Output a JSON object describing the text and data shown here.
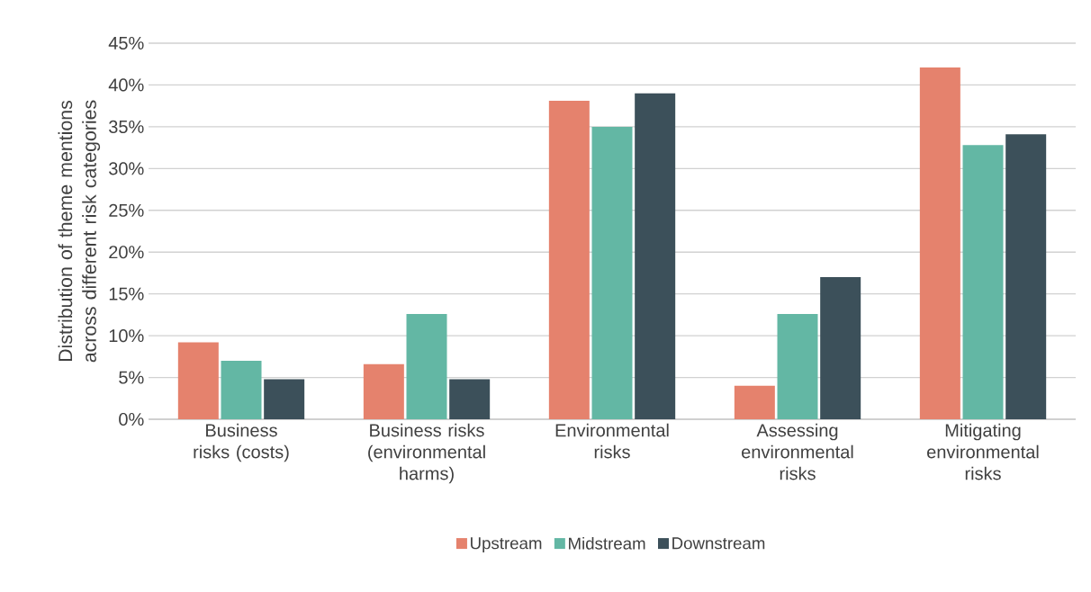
{
  "chart_data": {
    "type": "bar",
    "ylabel": "Distribution of theme mentions across different risk categories",
    "categories": [
      "Business risks (costs)",
      "Business risks (environmental harms)",
      "Environmental risks",
      "Assessing environmental risks",
      "Mitigating environmental risks"
    ],
    "series": [
      {
        "name": "Upstream",
        "color": "#e5826d",
        "values": [
          9.2,
          6.6,
          38.1,
          4.0,
          42.1
        ]
      },
      {
        "name": "Midstream",
        "color": "#63b7a4",
        "values": [
          7.0,
          12.6,
          35.0,
          12.6,
          32.8
        ]
      },
      {
        "name": "Downstream",
        "color": "#3c505a",
        "values": [
          4.8,
          4.8,
          39.0,
          17.0,
          34.1
        ]
      }
    ],
    "ylim": [
      0,
      45
    ],
    "yticks": [
      {
        "value": 0,
        "label": "0%"
      },
      {
        "value": 5,
        "label": "5%"
      },
      {
        "value": 10,
        "label": "10%"
      },
      {
        "value": 15,
        "label": "15%"
      },
      {
        "value": 20,
        "label": "20%"
      },
      {
        "value": 25,
        "label": "25%"
      },
      {
        "value": 30,
        "label": "30%"
      },
      {
        "value": 35,
        "label": "35%"
      },
      {
        "value": 40,
        "label": "40%"
      },
      {
        "value": 45,
        "label": "45%"
      }
    ],
    "grid": "y",
    "legend": "bottom"
  }
}
